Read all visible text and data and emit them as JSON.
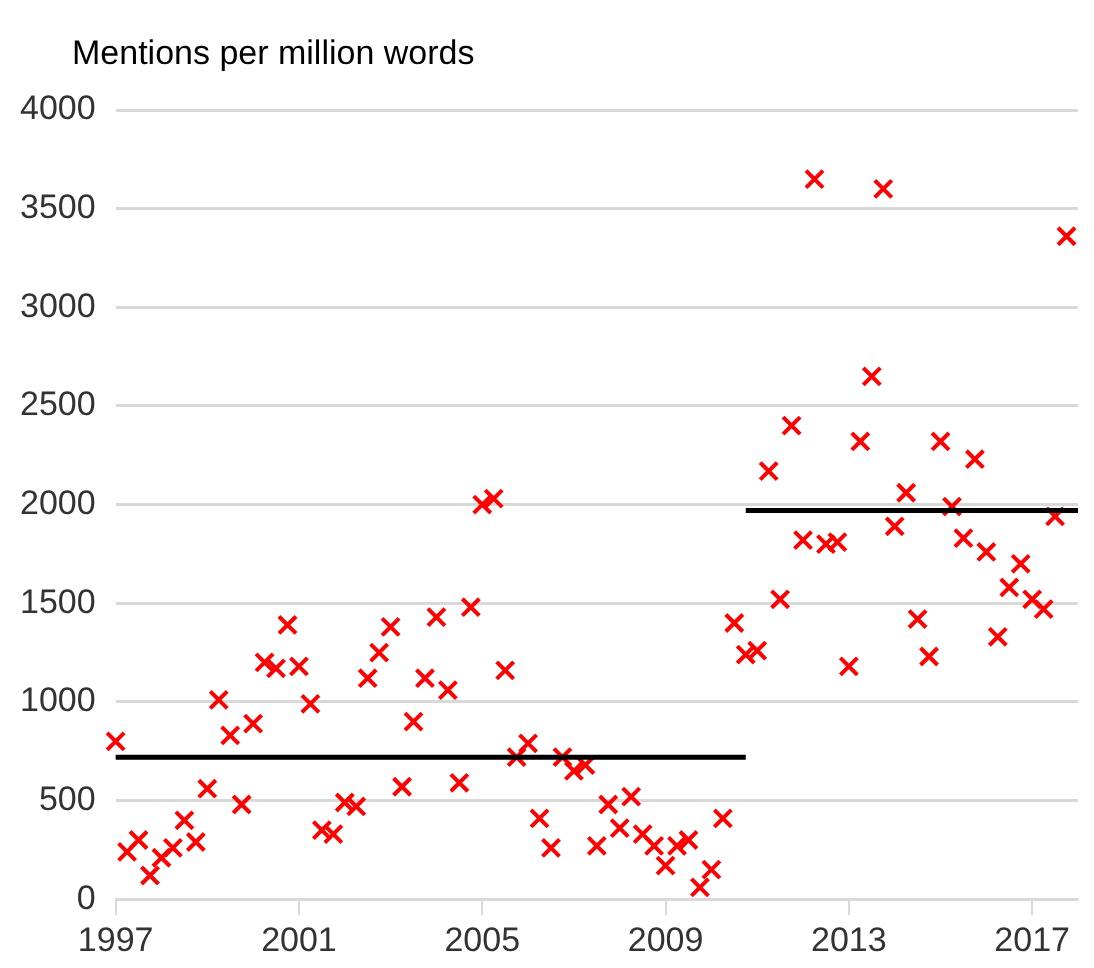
{
  "chart_data": {
    "type": "scatter",
    "ylabel": "Mentions per million words",
    "x": [
      1997,
      1997.25,
      1997.5,
      1997.75,
      1998,
      1998.25,
      1998.5,
      1998.75,
      1999,
      1999.25,
      1999.5,
      1999.75,
      2000,
      2000.25,
      2000.5,
      2000.75,
      2001,
      2001.25,
      2001.5,
      2001.75,
      2002,
      2002.25,
      2002.5,
      2002.75,
      2003,
      2003.25,
      2003.5,
      2003.75,
      2004,
      2004.25,
      2004.5,
      2004.75,
      2005,
      2005.25,
      2005.5,
      2005.75,
      2006,
      2006.25,
      2006.5,
      2006.75,
      2007,
      2007.25,
      2007.5,
      2007.75,
      2008,
      2008.25,
      2008.5,
      2008.75,
      2009,
      2009.25,
      2009.5,
      2009.75,
      2010,
      2010.25,
      2010.5,
      2010.75,
      2011,
      2011.25,
      2011.5,
      2011.75,
      2012,
      2012.25,
      2012.5,
      2012.75,
      2013,
      2013.25,
      2013.5,
      2013.75,
      2014,
      2014.25,
      2014.5,
      2014.75,
      2015,
      2015.25,
      2015.5,
      2015.75,
      2016,
      2016.25,
      2016.5,
      2016.75,
      2017,
      2017.25,
      2017.5,
      2017.75
    ],
    "series": [
      {
        "color": "#ff0000",
        "marker": "cross",
        "values": [
          800,
          240,
          300,
          120,
          210,
          260,
          400,
          290,
          560,
          1010,
          830,
          480,
          890,
          1200,
          1170,
          1390,
          1180,
          990,
          350,
          330,
          490,
          470,
          1120,
          1250,
          1380,
          570,
          900,
          1120,
          1430,
          1060,
          590,
          1480,
          2000,
          2030,
          1160,
          720,
          790,
          410,
          260,
          720,
          650,
          680,
          270,
          480,
          360,
          520,
          330,
          270,
          170,
          270,
          300,
          60,
          150,
          410,
          1400,
          1240,
          1260,
          2170,
          1520,
          2400,
          1820,
          3650,
          1800,
          1810,
          1180,
          2320,
          2650,
          3600,
          1890,
          2060,
          1420,
          1230,
          2320,
          1990,
          1830,
          2230,
          1760,
          1330,
          1580,
          1700,
          1520,
          1470,
          1940,
          3360
        ]
      },
      {
        "type": "line",
        "color": "#000000",
        "marker": "none",
        "x": [
          1997,
          2010.75
        ],
        "values": [
          720,
          720
        ]
      },
      {
        "type": "line",
        "color": "#000000",
        "marker": "none",
        "x": [
          2010.75,
          2018
        ],
        "values": [
          1970,
          1970
        ]
      }
    ],
    "xlim": [
      1997,
      2018
    ],
    "xticks": [
      1997,
      2001,
      2005,
      2009,
      2013,
      2017
    ],
    "ylim": [
      0,
      4000
    ],
    "yticks": [
      0,
      500,
      1000,
      1500,
      2000,
      2500,
      3000,
      3500,
      4000
    ],
    "grid": "y",
    "legend": false
  }
}
